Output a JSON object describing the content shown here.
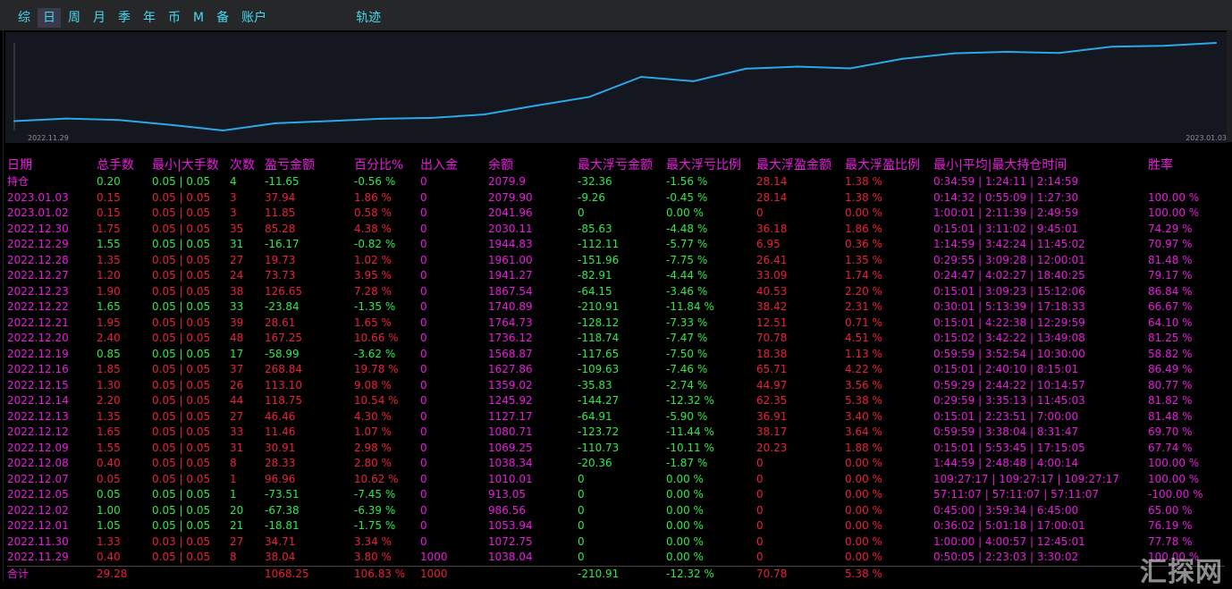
{
  "tabs": [
    {
      "label": "综",
      "active": false
    },
    {
      "label": "日",
      "active": true
    },
    {
      "label": "周",
      "active": false
    },
    {
      "label": "月",
      "active": false
    },
    {
      "label": "季",
      "active": false
    },
    {
      "label": "年",
      "active": false
    },
    {
      "label": "币",
      "active": false
    },
    {
      "label": "M",
      "active": false
    },
    {
      "label": "备",
      "active": false
    },
    {
      "label": "账户",
      "active": false
    },
    {
      "label": "轨迹",
      "active": false
    }
  ],
  "chart_data": {
    "type": "line",
    "title": "",
    "x_start_label": "2022.11.29",
    "x_end_label": "2023.01.03",
    "x": [
      "2022.11.29",
      "2022.11.30",
      "2022.12.01",
      "2022.12.02",
      "2022.12.05",
      "2022.12.07",
      "2022.12.08",
      "2022.12.09",
      "2022.12.12",
      "2022.12.13",
      "2022.12.14",
      "2022.12.15",
      "2022.12.16",
      "2022.12.19",
      "2022.12.20",
      "2022.12.21",
      "2022.12.22",
      "2022.12.23",
      "2022.12.27",
      "2022.12.28",
      "2022.12.29",
      "2022.12.30",
      "2023.01.02",
      "2023.01.03"
    ],
    "series": [
      {
        "values": [
          1038.04,
          1072.75,
          1053.94,
          986.56,
          913.05,
          1010.01,
          1038.34,
          1069.25,
          1080.71,
          1127.17,
          1245.92,
          1359.02,
          1627.86,
          1568.87,
          1736.12,
          1764.73,
          1740.89,
          1867.54,
          1941.27,
          1961.0,
          1944.83,
          2030.11,
          2041.96,
          2079.9
        ]
      }
    ],
    "color": "#2aa8e8"
  },
  "table": {
    "headers": [
      "日期",
      "总手数",
      "最小|大手数",
      "次数",
      "盈亏金额",
      "百分比%",
      "出入金",
      "余额",
      "最大浮亏金额",
      "最大浮亏比例",
      "最大浮盈金额",
      "最大浮盈比例",
      "最小|平均|最大持仓时间",
      "胜率"
    ],
    "rows": [
      {
        "date": "持仓",
        "lots": "0.20",
        "minmax": "0.05 | 0.05",
        "count": "4",
        "pnl": "-11.65",
        "pct": "-0.56 %",
        "io": "0",
        "bal": "2079.9",
        "mfl": "-32.36",
        "mflp": "-1.56 %",
        "mfp": "28.14",
        "mfpp": "1.38 %",
        "time": "0:34:59 | 1:24:11 | 2:14:59",
        "win": "",
        "color": "grn"
      },
      {
        "date": "2023.01.03",
        "lots": "0.15",
        "minmax": "0.05 | 0.05",
        "count": "3",
        "pnl": "37.94",
        "pct": "1.86 %",
        "io": "0",
        "bal": "2079.90",
        "mfl": "-9.26",
        "mflp": "-0.45 %",
        "mfp": "28.14",
        "mfpp": "1.38 %",
        "time": "0:14:32 | 0:55:09 | 1:27:30",
        "win": "100.00 %",
        "color": "red"
      },
      {
        "date": "2023.01.02",
        "lots": "0.15",
        "minmax": "0.05 | 0.05",
        "count": "3",
        "pnl": "11.85",
        "pct": "0.58 %",
        "io": "0",
        "bal": "2041.96",
        "mfl": "0",
        "mflp": "0.00 %",
        "mfp": "0",
        "mfpp": "0.00 %",
        "time": "1:00:01 | 2:11:39 | 2:49:59",
        "win": "100.00 %",
        "color": "red"
      },
      {
        "date": "2022.12.30",
        "lots": "1.75",
        "minmax": "0.05 | 0.05",
        "count": "35",
        "pnl": "85.28",
        "pct": "4.38 %",
        "io": "0",
        "bal": "2030.11",
        "mfl": "-85.63",
        "mflp": "-4.48 %",
        "mfp": "36.18",
        "mfpp": "1.86 %",
        "time": "0:15:01 | 3:11:02 | 9:45:01",
        "win": "74.29 %",
        "color": "red"
      },
      {
        "date": "2022.12.29",
        "lots": "1.55",
        "minmax": "0.05 | 0.05",
        "count": "31",
        "pnl": "-16.17",
        "pct": "-0.82 %",
        "io": "0",
        "bal": "1944.83",
        "mfl": "-112.11",
        "mflp": "-5.77 %",
        "mfp": "6.95",
        "mfpp": "0.36 %",
        "time": "1:14:59 | 3:42:24 | 11:45:02",
        "win": "70.97 %",
        "color": "grn"
      },
      {
        "date": "2022.12.28",
        "lots": "1.35",
        "minmax": "0.05 | 0.05",
        "count": "27",
        "pnl": "19.73",
        "pct": "1.02 %",
        "io": "0",
        "bal": "1961.00",
        "mfl": "-151.96",
        "mflp": "-7.75 %",
        "mfp": "26.41",
        "mfpp": "1.35 %",
        "time": "0:29:55 | 3:09:28 | 12:00:01",
        "win": "81.48 %",
        "color": "red"
      },
      {
        "date": "2022.12.27",
        "lots": "1.20",
        "minmax": "0.05 | 0.05",
        "count": "24",
        "pnl": "73.73",
        "pct": "3.95 %",
        "io": "0",
        "bal": "1941.27",
        "mfl": "-82.91",
        "mflp": "-4.44 %",
        "mfp": "33.09",
        "mfpp": "1.74 %",
        "time": "0:24:47 | 4:02:27 | 18:40:25",
        "win": "79.17 %",
        "color": "red"
      },
      {
        "date": "2022.12.23",
        "lots": "1.90",
        "minmax": "0.05 | 0.05",
        "count": "38",
        "pnl": "126.65",
        "pct": "7.28 %",
        "io": "0",
        "bal": "1867.54",
        "mfl": "-64.15",
        "mflp": "-3.46 %",
        "mfp": "40.53",
        "mfpp": "2.20 %",
        "time": "0:15:01 | 3:09:23 | 15:12:06",
        "win": "86.84 %",
        "color": "red"
      },
      {
        "date": "2022.12.22",
        "lots": "1.65",
        "minmax": "0.05 | 0.05",
        "count": "33",
        "pnl": "-23.84",
        "pct": "-1.35 %",
        "io": "0",
        "bal": "1740.89",
        "mfl": "-210.91",
        "mflp": "-11.84 %",
        "mfp": "38.42",
        "mfpp": "2.31 %",
        "time": "0:30:01 | 5:13:39 | 17:18:33",
        "win": "66.67 %",
        "color": "grn"
      },
      {
        "date": "2022.12.21",
        "lots": "1.95",
        "minmax": "0.05 | 0.05",
        "count": "39",
        "pnl": "28.61",
        "pct": "1.65 %",
        "io": "0",
        "bal": "1764.73",
        "mfl": "-128.12",
        "mflp": "-7.33 %",
        "mfp": "12.51",
        "mfpp": "0.71 %",
        "time": "0:15:01 | 4:22:38 | 12:29:59",
        "win": "64.10 %",
        "color": "red"
      },
      {
        "date": "2022.12.20",
        "lots": "2.40",
        "minmax": "0.05 | 0.05",
        "count": "48",
        "pnl": "167.25",
        "pct": "10.66 %",
        "io": "0",
        "bal": "1736.12",
        "mfl": "-118.74",
        "mflp": "-7.47 %",
        "mfp": "70.78",
        "mfpp": "4.51 %",
        "time": "0:15:02 | 3:42:22 | 13:49:08",
        "win": "81.25 %",
        "color": "red"
      },
      {
        "date": "2022.12.19",
        "lots": "0.85",
        "minmax": "0.05 | 0.05",
        "count": "17",
        "pnl": "-58.99",
        "pct": "-3.62 %",
        "io": "0",
        "bal": "1568.87",
        "mfl": "-117.65",
        "mflp": "-7.50 %",
        "mfp": "18.38",
        "mfpp": "1.13 %",
        "time": "0:59:59 | 3:52:54 | 10:30:00",
        "win": "58.82 %",
        "color": "grn"
      },
      {
        "date": "2022.12.16",
        "lots": "1.85",
        "minmax": "0.05 | 0.05",
        "count": "37",
        "pnl": "268.84",
        "pct": "19.78 %",
        "io": "0",
        "bal": "1627.86",
        "mfl": "-109.63",
        "mflp": "-7.46 %",
        "mfp": "65.71",
        "mfpp": "4.22 %",
        "time": "0:15:01 | 2:40:10 | 8:15:01",
        "win": "86.49 %",
        "color": "red"
      },
      {
        "date": "2022.12.15",
        "lots": "1.30",
        "minmax": "0.05 | 0.05",
        "count": "26",
        "pnl": "113.10",
        "pct": "9.08 %",
        "io": "0",
        "bal": "1359.02",
        "mfl": "-35.83",
        "mflp": "-2.74 %",
        "mfp": "44.97",
        "mfpp": "3.56 %",
        "time": "0:59:29 | 2:44:22 | 10:14:57",
        "win": "80.77 %",
        "color": "red"
      },
      {
        "date": "2022.12.14",
        "lots": "2.20",
        "minmax": "0.05 | 0.05",
        "count": "44",
        "pnl": "118.75",
        "pct": "10.54 %",
        "io": "0",
        "bal": "1245.92",
        "mfl": "-144.27",
        "mflp": "-12.32 %",
        "mfp": "62.35",
        "mfpp": "5.38 %",
        "time": "0:29:59 | 3:35:13 | 11:45:03",
        "win": "81.82 %",
        "color": "red"
      },
      {
        "date": "2022.12.13",
        "lots": "1.35",
        "minmax": "0.05 | 0.05",
        "count": "27",
        "pnl": "46.46",
        "pct": "4.30 %",
        "io": "0",
        "bal": "1127.17",
        "mfl": "-64.91",
        "mflp": "-5.90 %",
        "mfp": "36.91",
        "mfpp": "3.40 %",
        "time": "0:15:01 | 2:23:51 | 7:00:00",
        "win": "81.48 %",
        "color": "red"
      },
      {
        "date": "2022.12.12",
        "lots": "1.65",
        "minmax": "0.05 | 0.05",
        "count": "33",
        "pnl": "11.46",
        "pct": "1.07 %",
        "io": "0",
        "bal": "1080.71",
        "mfl": "-123.72",
        "mflp": "-11.44 %",
        "mfp": "38.17",
        "mfpp": "3.64 %",
        "time": "0:59:59 | 3:38:04 | 8:31:47",
        "win": "69.70 %",
        "color": "red"
      },
      {
        "date": "2022.12.09",
        "lots": "1.55",
        "minmax": "0.05 | 0.05",
        "count": "31",
        "pnl": "30.91",
        "pct": "2.98 %",
        "io": "0",
        "bal": "1069.25",
        "mfl": "-110.73",
        "mflp": "-10.11 %",
        "mfp": "20.23",
        "mfpp": "1.88 %",
        "time": "0:15:01 | 5:53:45 | 17:15:05",
        "win": "67.74 %",
        "color": "red"
      },
      {
        "date": "2022.12.08",
        "lots": "0.40",
        "minmax": "0.05 | 0.05",
        "count": "8",
        "pnl": "28.33",
        "pct": "2.80 %",
        "io": "0",
        "bal": "1038.34",
        "mfl": "-20.36",
        "mflp": "-1.87 %",
        "mfp": "0",
        "mfpp": "0.00 %",
        "time": "1:44:59 | 2:48:48 | 4:00:14",
        "win": "100.00 %",
        "color": "red"
      },
      {
        "date": "2022.12.07",
        "lots": "0.05",
        "minmax": "0.05 | 0.05",
        "count": "1",
        "pnl": "96.96",
        "pct": "10.62 %",
        "io": "0",
        "bal": "1010.01",
        "mfl": "0",
        "mflp": "0.00 %",
        "mfp": "0",
        "mfpp": "0.00 %",
        "time": "109:27:17 | 109:27:17 | 109:27:17",
        "win": "100.00 %",
        "color": "red"
      },
      {
        "date": "2022.12.05",
        "lots": "0.05",
        "minmax": "0.05 | 0.05",
        "count": "1",
        "pnl": "-73.51",
        "pct": "-7.45 %",
        "io": "0",
        "bal": "913.05",
        "mfl": "0",
        "mflp": "0.00 %",
        "mfp": "0",
        "mfpp": "0.00 %",
        "time": "57:11:07 | 57:11:07 | 57:11:07",
        "win": "-100.00 %",
        "color": "grn"
      },
      {
        "date": "2022.12.02",
        "lots": "1.00",
        "minmax": "0.05 | 0.05",
        "count": "20",
        "pnl": "-67.38",
        "pct": "-6.39 %",
        "io": "0",
        "bal": "986.56",
        "mfl": "0",
        "mflp": "0.00 %",
        "mfp": "0",
        "mfpp": "0.00 %",
        "time": "0:45:00 | 3:59:34 | 6:45:00",
        "win": "65.00 %",
        "color": "grn"
      },
      {
        "date": "2022.12.01",
        "lots": "1.05",
        "minmax": "0.05 | 0.05",
        "count": "21",
        "pnl": "-18.81",
        "pct": "-1.75 %",
        "io": "0",
        "bal": "1053.94",
        "mfl": "0",
        "mflp": "0.00 %",
        "mfp": "0",
        "mfpp": "0.00 %",
        "time": "0:36:02 | 5:01:18 | 17:00:01",
        "win": "76.19 %",
        "color": "grn"
      },
      {
        "date": "2022.11.30",
        "lots": "1.33",
        "minmax": "0.03 | 0.05",
        "count": "27",
        "pnl": "34.71",
        "pct": "3.34 %",
        "io": "0",
        "bal": "1072.75",
        "mfl": "0",
        "mflp": "0.00 %",
        "mfp": "0",
        "mfpp": "0.00 %",
        "time": "1:00:00 | 4:00:57 | 12:45:01",
        "win": "77.78 %",
        "color": "red"
      },
      {
        "date": "2022.11.29",
        "lots": "0.40",
        "minmax": "0.05 | 0.05",
        "count": "8",
        "pnl": "38.04",
        "pct": "3.80 %",
        "io": "1000",
        "bal": "1038.04",
        "mfl": "0",
        "mflp": "0.00 %",
        "mfp": "0",
        "mfpp": "0.00 %",
        "time": "0:50:05 | 2:23:03 | 3:30:02",
        "win": "100.00 %",
        "color": "red"
      }
    ],
    "total": {
      "date": "合计",
      "lots": "29.28",
      "pnl": "1068.25",
      "pct": "106.83 %",
      "io": "1000",
      "mfl": "-210.91",
      "mflp": "-12.32 %",
      "mfp": "70.78",
      "mfpp": "5.38 %"
    }
  },
  "watermark": "汇探网"
}
